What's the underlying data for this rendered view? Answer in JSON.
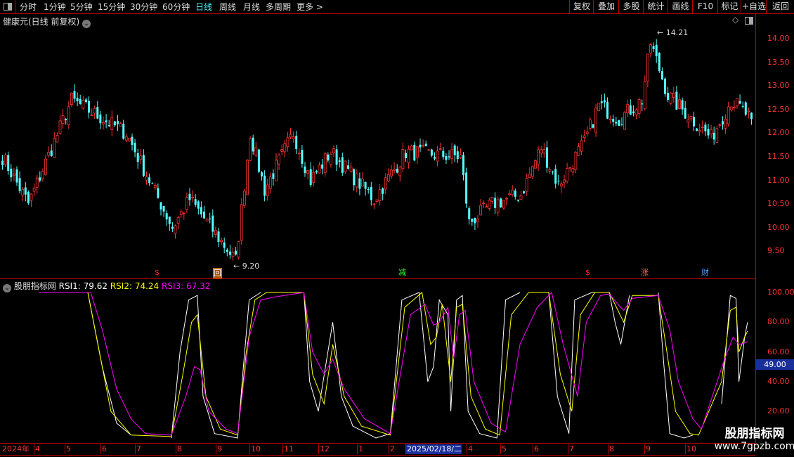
{
  "toolbar": {
    "periods": [
      "分时",
      "1分钟",
      "5分钟",
      "15分钟",
      "30分钟",
      "60分钟",
      "日线",
      "周线",
      "月线",
      "多周期",
      "更多 >"
    ],
    "active": "日线",
    "right_buttons": [
      "复权",
      "叠加",
      "多股",
      "统计",
      "画线",
      "F10",
      "标记",
      "+自选",
      "返回"
    ]
  },
  "stock_title": "健康元(日线 前复权)",
  "price_axis": {
    "labels": [
      "14.00",
      "13.50",
      "13.00",
      "12.50",
      "12.00",
      "11.50",
      "11.00",
      "10.50",
      "10.00",
      "9.50"
    ]
  },
  "annotations": {
    "high": "14.21",
    "low": "9.20"
  },
  "markers": [
    {
      "text": "$",
      "color": "#ff2020"
    },
    {
      "text": "回",
      "color": "#e08000"
    },
    {
      "text": "减",
      "color": "#30ff30"
    },
    {
      "text": "$",
      "color": "#ff2020"
    },
    {
      "text": "涨",
      "color": "#ff6060"
    },
    {
      "text": "财",
      "color": "#4aa0ff"
    }
  ],
  "indicator": {
    "name": "股朋指标网",
    "rsi1_label": "RSI1: 79.62",
    "rsi2_label": "RSI2: 74.24",
    "rsi3_label": "RSI3: 67.32",
    "cursor_value": "49.00",
    "axis_labels": [
      "100.00",
      "80.00",
      "60.00",
      "40.00",
      "20.00"
    ]
  },
  "time_axis": {
    "labels": [
      "2024年",
      "4",
      "5",
      "6",
      "7",
      "8",
      "9",
      "10",
      "11",
      "12",
      "1",
      "2",
      "2025/02/18/二",
      "4",
      "5",
      "6",
      "7",
      "8",
      "9",
      "10"
    ]
  },
  "watermark": {
    "line1": "股朋指标网",
    "line2": "www.7gpzb.com"
  },
  "colors": {
    "up": "#ff3232",
    "down": "#54ffff",
    "rsi1": "#ffffff",
    "rsi2": "#ffff00",
    "rsi3": "#ff00ff",
    "grid": "#b00000"
  },
  "chart_data": {
    "type": "candlestick+line",
    "price_range": [
      9.2,
      14.21
    ],
    "close_waypoints": [
      [
        0,
        11.5
      ],
      [
        9,
        10.5
      ],
      [
        24,
        12.7
      ],
      [
        43,
        12.0
      ],
      [
        59,
        10.0
      ],
      [
        65,
        10.6
      ],
      [
        81,
        9.3
      ],
      [
        86,
        12.0
      ],
      [
        91,
        10.8
      ],
      [
        101,
        12.0
      ],
      [
        107,
        11.0
      ],
      [
        114,
        11.6
      ],
      [
        129,
        10.6
      ],
      [
        140,
        11.6
      ],
      [
        159,
        11.5
      ],
      [
        162,
        10.1
      ],
      [
        170,
        10.5
      ],
      [
        180,
        10.7
      ],
      [
        187,
        11.7
      ],
      [
        193,
        10.9
      ],
      [
        202,
        11.8
      ],
      [
        207,
        12.6
      ],
      [
        214,
        12.3
      ],
      [
        222,
        12.7
      ],
      [
        225,
        13.9
      ],
      [
        231,
        12.8
      ],
      [
        246,
        11.9
      ],
      [
        253,
        12.7
      ],
      [
        260,
        12.3
      ]
    ],
    "rsi_range": [
      0,
      100
    ],
    "series": [
      {
        "name": "RSI1",
        "points": [
          [
            13,
            100
          ],
          [
            30,
            100
          ],
          [
            35,
            50
          ],
          [
            40,
            12
          ],
          [
            45,
            4
          ],
          [
            59,
            2
          ],
          [
            62,
            60
          ],
          [
            65,
            95
          ],
          [
            68,
            98
          ],
          [
            70,
            30
          ],
          [
            74,
            5
          ],
          [
            82,
            2
          ],
          [
            84,
            50
          ],
          [
            86,
            95
          ],
          [
            90,
            100
          ],
          [
            105,
            100
          ],
          [
            107,
            40
          ],
          [
            110,
            20
          ],
          [
            115,
            80
          ],
          [
            118,
            30
          ],
          [
            122,
            10
          ],
          [
            130,
            2
          ],
          [
            135,
            5
          ],
          [
            139,
            95
          ],
          [
            145,
            100
          ],
          [
            148,
            40
          ],
          [
            150,
            50
          ],
          [
            152,
            95
          ],
          [
            155,
            85
          ],
          [
            156,
            20
          ],
          [
            158,
            95
          ],
          [
            160,
            98
          ],
          [
            162,
            20
          ],
          [
            166,
            5
          ],
          [
            172,
            2
          ],
          [
            175,
            95
          ],
          [
            180,
            100
          ],
          [
            190,
            100
          ],
          [
            193,
            30
          ],
          [
            197,
            5
          ],
          [
            199,
            95
          ],
          [
            205,
            100
          ],
          [
            211,
            100
          ],
          [
            213,
            80
          ],
          [
            215,
            65
          ],
          [
            218,
            98
          ],
          [
            228,
            100
          ],
          [
            230,
            50
          ],
          [
            232,
            5
          ],
          [
            237,
            2
          ],
          [
            240,
            4
          ],
          [
            250,
            25
          ],
          [
            253,
            98
          ],
          [
            255,
            96
          ],
          [
            256,
            40
          ],
          [
            258,
            70
          ],
          [
            259,
            80
          ]
        ]
      },
      {
        "name": "RSI2",
        "points": [
          [
            13,
            100
          ],
          [
            30,
            100
          ],
          [
            34,
            60
          ],
          [
            38,
            20
          ],
          [
            45,
            4
          ],
          [
            59,
            3
          ],
          [
            63,
            45
          ],
          [
            66,
            80
          ],
          [
            68,
            85
          ],
          [
            71,
            30
          ],
          [
            76,
            8
          ],
          [
            82,
            4
          ],
          [
            85,
            60
          ],
          [
            88,
            95
          ],
          [
            92,
            100
          ],
          [
            105,
            100
          ],
          [
            108,
            45
          ],
          [
            112,
            25
          ],
          [
            115,
            65
          ],
          [
            119,
            30
          ],
          [
            125,
            10
          ],
          [
            135,
            4
          ],
          [
            140,
            90
          ],
          [
            146,
            100
          ],
          [
            149,
            65
          ],
          [
            151,
            70
          ],
          [
            153,
            92
          ],
          [
            156,
            40
          ],
          [
            158,
            90
          ],
          [
            160,
            92
          ],
          [
            163,
            30
          ],
          [
            168,
            8
          ],
          [
            173,
            4
          ],
          [
            177,
            85
          ],
          [
            183,
            100
          ],
          [
            190,
            100
          ],
          [
            194,
            45
          ],
          [
            198,
            20
          ],
          [
            201,
            85
          ],
          [
            206,
            100
          ],
          [
            211,
            100
          ],
          [
            214,
            88
          ],
          [
            216,
            80
          ],
          [
            219,
            98
          ],
          [
            228,
            98
          ],
          [
            231,
            60
          ],
          [
            234,
            20
          ],
          [
            239,
            5
          ],
          [
            242,
            4
          ],
          [
            250,
            40
          ],
          [
            253,
            88
          ],
          [
            255,
            90
          ],
          [
            256,
            60
          ],
          [
            258,
            70
          ],
          [
            259,
            74
          ]
        ]
      },
      {
        "name": "RSI3",
        "points": [
          [
            13,
            100
          ],
          [
            31,
            100
          ],
          [
            35,
            75
          ],
          [
            40,
            35
          ],
          [
            45,
            15
          ],
          [
            50,
            5
          ],
          [
            59,
            4
          ],
          [
            64,
            30
          ],
          [
            67,
            50
          ],
          [
            69,
            48
          ],
          [
            72,
            20
          ],
          [
            78,
            8
          ],
          [
            82,
            5
          ],
          [
            86,
            70
          ],
          [
            90,
            95
          ],
          [
            95,
            97
          ],
          [
            105,
            100
          ],
          [
            108,
            60
          ],
          [
            112,
            45
          ],
          [
            115,
            55
          ],
          [
            119,
            35
          ],
          [
            126,
            15
          ],
          [
            135,
            5
          ],
          [
            142,
            85
          ],
          [
            147,
            92
          ],
          [
            150,
            78
          ],
          [
            152,
            80
          ],
          [
            155,
            90
          ],
          [
            157,
            55
          ],
          [
            159,
            85
          ],
          [
            161,
            88
          ],
          [
            164,
            40
          ],
          [
            170,
            12
          ],
          [
            175,
            6
          ],
          [
            180,
            65
          ],
          [
            186,
            90
          ],
          [
            191,
            100
          ],
          [
            195,
            65
          ],
          [
            200,
            30
          ],
          [
            203,
            80
          ],
          [
            208,
            98
          ],
          [
            211,
            99
          ],
          [
            214,
            92
          ],
          [
            216,
            88
          ],
          [
            219,
            96
          ],
          [
            228,
            98
          ],
          [
            232,
            75
          ],
          [
            235,
            40
          ],
          [
            240,
            15
          ],
          [
            243,
            8
          ],
          [
            251,
            55
          ],
          [
            254,
            70
          ],
          [
            256,
            65
          ],
          [
            258,
            66
          ],
          [
            259,
            67
          ]
        ]
      }
    ]
  }
}
